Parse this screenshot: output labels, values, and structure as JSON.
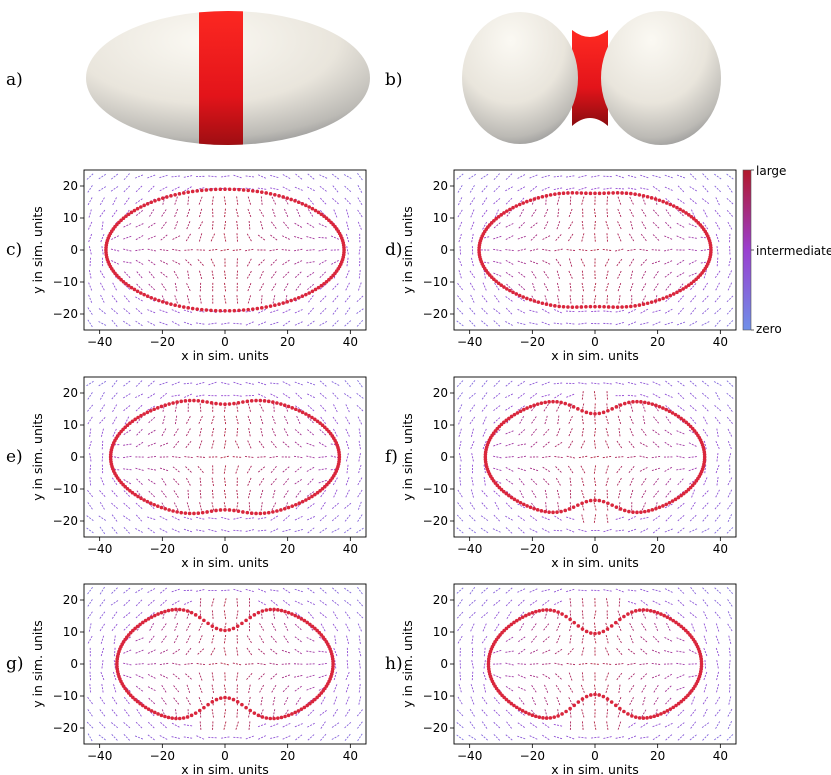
{
  "panel_labels": [
    "a)",
    "b)",
    "c)",
    "d)",
    "e)",
    "f)",
    "g)",
    "h)"
  ],
  "colorbar": {
    "labels": [
      "large",
      "intermediate",
      "zero"
    ],
    "color_high": "#b2182b",
    "color_mid": "#9a3fd0",
    "color_low": "#6f8fe8"
  },
  "shape_colors": {
    "body": "#ece8df",
    "band": "#e8141a"
  },
  "chart_data": [
    {
      "type": "vector-field",
      "panel": "c)",
      "xlabel": "x in sim. units",
      "ylabel": "y in sim. units",
      "xlim": [
        -45,
        45
      ],
      "ylim": [
        -25,
        25
      ],
      "xticks": [
        -40,
        -20,
        0,
        20,
        40
      ],
      "yticks": [
        -20,
        -10,
        0,
        10,
        20
      ],
      "contour": {
        "half_width": 38,
        "half_height": 19,
        "neck_depth": 0,
        "neck_width": 6,
        "color": "#d9263c"
      }
    },
    {
      "type": "vector-field",
      "panel": "d)",
      "xlabel": "x in sim. units",
      "ylabel": "y in sim. units",
      "xlim": [
        -45,
        45
      ],
      "ylim": [
        -25,
        25
      ],
      "xticks": [
        -40,
        -20,
        0,
        20,
        40
      ],
      "yticks": [
        -20,
        -10,
        0,
        10,
        20
      ],
      "contour": {
        "half_width": 37,
        "half_height": 18.7,
        "neck_depth": 1,
        "neck_width": 6,
        "color": "#d9263c"
      }
    },
    {
      "type": "vector-field",
      "panel": "e)",
      "xlabel": "x in sim. units",
      "ylabel": "y in sim. units",
      "xlim": [
        -45,
        45
      ],
      "ylim": [
        -25,
        25
      ],
      "xticks": [
        -40,
        -20,
        0,
        20,
        40
      ],
      "yticks": [
        -20,
        -10,
        0,
        10,
        20
      ],
      "contour": {
        "half_width": 36.5,
        "half_height": 19,
        "neck_depth": 2.5,
        "neck_width": 6,
        "color": "#d9263c"
      }
    },
    {
      "type": "vector-field",
      "panel": "f)",
      "xlabel": "x in sim. units",
      "ylabel": "y in sim. units",
      "xlim": [
        -45,
        45
      ],
      "ylim": [
        -25,
        25
      ],
      "xticks": [
        -40,
        -20,
        0,
        20,
        40
      ],
      "yticks": [
        -20,
        -10,
        0,
        10,
        20
      ],
      "contour": {
        "half_width": 35,
        "half_height": 19.5,
        "neck_depth": 6,
        "neck_width": 6.5,
        "color": "#d9263c"
      }
    },
    {
      "type": "vector-field",
      "panel": "g)",
      "xlabel": "x in sim. units",
      "ylabel": "y in sim. units",
      "xlim": [
        -45,
        45
      ],
      "ylim": [
        -25,
        25
      ],
      "xticks": [
        -40,
        -20,
        0,
        20,
        40
      ],
      "yticks": [
        -20,
        -10,
        0,
        10,
        20
      ],
      "contour": {
        "half_width": 34.5,
        "half_height": 20,
        "neck_depth": 9.5,
        "neck_width": 7,
        "color": "#d9263c"
      }
    },
    {
      "type": "vector-field",
      "panel": "h)",
      "xlabel": "x in sim. units",
      "ylabel": "y in sim. units",
      "xlim": [
        -45,
        45
      ],
      "ylim": [
        -25,
        25
      ],
      "xticks": [
        -40,
        -20,
        0,
        20,
        40
      ],
      "yticks": [
        -20,
        -10,
        0,
        10,
        20
      ],
      "contour": {
        "half_width": 34,
        "half_height": 20,
        "neck_depth": 10.5,
        "neck_width": 7,
        "color": "#d9263c"
      }
    }
  ]
}
